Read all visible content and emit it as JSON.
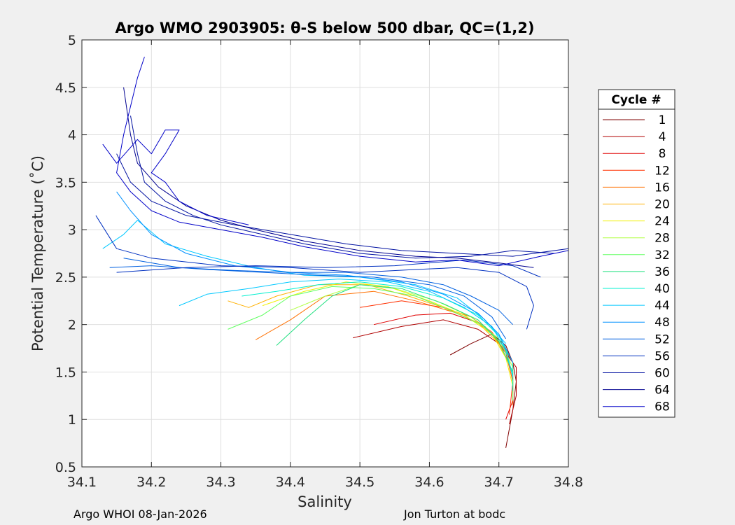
{
  "chart_data": {
    "type": "line",
    "title": "Argo WMO 2903905: θ-S below 500 dbar,  QC=(1,2)",
    "xlabel": "Salinity",
    "ylabel": "Potential Temperature (˚C)",
    "xlim": [
      34.1,
      34.8
    ],
    "ylim": [
      0.5,
      5
    ],
    "xticks": [
      "34.1",
      "34.2",
      "34.3",
      "34.4",
      "34.5",
      "34.6",
      "34.7",
      "34.8"
    ],
    "yticks": [
      "0.5",
      "1",
      "1.5",
      "2",
      "2.5",
      "3",
      "3.5",
      "4",
      "4.5",
      "5"
    ],
    "grid": true,
    "legend": {
      "title": "Cycle #",
      "placement": "outside-right",
      "entries": [
        {
          "label": "1",
          "color": "#7f0000"
        },
        {
          "label": "4",
          "color": "#b00000"
        },
        {
          "label": "8",
          "color": "#e00000"
        },
        {
          "label": "12",
          "color": "#ff3000"
        },
        {
          "label": "16",
          "color": "#ff7000"
        },
        {
          "label": "20",
          "color": "#ffb000"
        },
        {
          "label": "24",
          "color": "#f0f000"
        },
        {
          "label": "28",
          "color": "#b0ff40"
        },
        {
          "label": "32",
          "color": "#60ff60"
        },
        {
          "label": "36",
          "color": "#20e080"
        },
        {
          "label": "40",
          "color": "#00f0d0"
        },
        {
          "label": "44",
          "color": "#00c8ff"
        },
        {
          "label": "48",
          "color": "#0090ff"
        },
        {
          "label": "52",
          "color": "#0060e0"
        },
        {
          "label": "56",
          "color": "#0030c0"
        },
        {
          "label": "60",
          "color": "#0010a0"
        },
        {
          "label": "64",
          "color": "#00008f"
        },
        {
          "label": "68",
          "color": "#0000c8"
        }
      ]
    },
    "series": [
      {
        "color": "#7f0000",
        "points": [
          [
            34.63,
            1.68
          ],
          [
            34.66,
            1.8
          ],
          [
            34.69,
            1.9
          ],
          [
            34.71,
            1.78
          ],
          [
            34.72,
            1.6
          ],
          [
            34.725,
            1.4
          ],
          [
            34.72,
            1.1
          ],
          [
            34.71,
            0.7
          ]
        ]
      },
      {
        "color": "#b00000",
        "points": [
          [
            34.49,
            1.86
          ],
          [
            34.56,
            1.98
          ],
          [
            34.62,
            2.05
          ],
          [
            34.67,
            1.95
          ],
          [
            34.7,
            1.8
          ],
          [
            34.725,
            1.55
          ],
          [
            34.725,
            1.25
          ],
          [
            34.715,
            0.95
          ]
        ]
      },
      {
        "color": "#e00000",
        "points": [
          [
            34.52,
            2.0
          ],
          [
            34.58,
            2.1
          ],
          [
            34.63,
            2.12
          ],
          [
            34.67,
            2.02
          ],
          [
            34.7,
            1.85
          ],
          [
            34.72,
            1.6
          ],
          [
            34.72,
            1.2
          ],
          [
            34.71,
            1.0
          ]
        ]
      },
      {
        "color": "#ff3000",
        "points": [
          [
            34.5,
            2.18
          ],
          [
            34.56,
            2.25
          ],
          [
            34.62,
            2.18
          ],
          [
            34.66,
            2.08
          ],
          [
            34.69,
            1.92
          ],
          [
            34.71,
            1.7
          ],
          [
            34.72,
            1.4
          ],
          [
            34.715,
            1.05
          ]
        ]
      },
      {
        "color": "#ff7000",
        "points": [
          [
            34.35,
            1.84
          ],
          [
            34.4,
            2.05
          ],
          [
            34.45,
            2.3
          ],
          [
            34.52,
            2.35
          ],
          [
            34.58,
            2.25
          ],
          [
            34.64,
            2.12
          ],
          [
            34.68,
            1.98
          ],
          [
            34.71,
            1.72
          ],
          [
            34.72,
            1.4
          ],
          [
            34.72,
            1.15
          ]
        ]
      },
      {
        "color": "#ffb000",
        "points": [
          [
            34.31,
            2.25
          ],
          [
            34.34,
            2.18
          ],
          [
            34.38,
            2.3
          ],
          [
            34.44,
            2.42
          ],
          [
            34.51,
            2.42
          ],
          [
            34.57,
            2.3
          ],
          [
            34.62,
            2.18
          ],
          [
            34.67,
            2.02
          ],
          [
            34.7,
            1.8
          ],
          [
            34.72,
            1.5
          ],
          [
            34.72,
            1.25
          ]
        ]
      },
      {
        "color": "#f0f000",
        "points": [
          [
            34.36,
            2.2
          ],
          [
            34.42,
            2.35
          ],
          [
            34.48,
            2.45
          ],
          [
            34.54,
            2.4
          ],
          [
            34.6,
            2.25
          ],
          [
            34.65,
            2.1
          ],
          [
            34.69,
            1.9
          ],
          [
            34.71,
            1.65
          ],
          [
            34.72,
            1.35
          ]
        ]
      },
      {
        "color": "#b0ff40",
        "points": [
          [
            34.4,
            2.15
          ],
          [
            34.45,
            2.3
          ],
          [
            34.5,
            2.42
          ],
          [
            34.55,
            2.38
          ],
          [
            34.61,
            2.25
          ],
          [
            34.66,
            2.08
          ],
          [
            34.7,
            1.85
          ],
          [
            34.72,
            1.55
          ],
          [
            34.72,
            1.3
          ]
        ]
      },
      {
        "color": "#60ff60",
        "points": [
          [
            34.31,
            1.95
          ],
          [
            34.36,
            2.1
          ],
          [
            34.4,
            2.3
          ],
          [
            34.46,
            2.4
          ],
          [
            34.52,
            2.38
          ],
          [
            34.58,
            2.3
          ],
          [
            34.63,
            2.15
          ],
          [
            34.68,
            1.98
          ],
          [
            34.71,
            1.75
          ],
          [
            34.72,
            1.45
          ],
          [
            34.72,
            1.2
          ]
        ]
      },
      {
        "color": "#20e080",
        "points": [
          [
            34.38,
            1.78
          ],
          [
            34.42,
            2.05
          ],
          [
            34.46,
            2.3
          ],
          [
            34.5,
            2.42
          ],
          [
            34.56,
            2.38
          ],
          [
            34.62,
            2.22
          ],
          [
            34.67,
            2.05
          ],
          [
            34.7,
            1.82
          ],
          [
            34.72,
            1.5
          ]
        ]
      },
      {
        "color": "#00f0d0",
        "points": [
          [
            34.33,
            2.3
          ],
          [
            34.38,
            2.35
          ],
          [
            34.44,
            2.42
          ],
          [
            34.5,
            2.45
          ],
          [
            34.56,
            2.4
          ],
          [
            34.62,
            2.28
          ],
          [
            34.67,
            2.1
          ],
          [
            34.7,
            1.88
          ],
          [
            34.72,
            1.6
          ],
          [
            34.72,
            1.3
          ]
        ]
      },
      {
        "color": "#00c8ff",
        "points": [
          [
            34.24,
            2.2
          ],
          [
            34.28,
            2.32
          ],
          [
            34.34,
            2.38
          ],
          [
            34.4,
            2.45
          ],
          [
            34.47,
            2.48
          ],
          [
            34.54,
            2.45
          ],
          [
            34.6,
            2.35
          ],
          [
            34.65,
            2.18
          ],
          [
            34.69,
            1.98
          ],
          [
            34.71,
            1.72
          ],
          [
            34.72,
            1.45
          ]
        ]
      },
      {
        "color": "#00c8ff",
        "points": [
          [
            34.13,
            2.8
          ],
          [
            34.16,
            2.95
          ],
          [
            34.18,
            3.1
          ],
          [
            34.22,
            2.85
          ],
          [
            34.28,
            2.72
          ],
          [
            34.35,
            2.6
          ],
          [
            34.42,
            2.52
          ],
          [
            34.5,
            2.5
          ],
          [
            34.58,
            2.42
          ],
          [
            34.64,
            2.28
          ],
          [
            34.68,
            2.05
          ],
          [
            34.71,
            1.8
          ]
        ]
      },
      {
        "color": "#0090ff",
        "points": [
          [
            34.15,
            3.4
          ],
          [
            34.17,
            3.2
          ],
          [
            34.2,
            2.95
          ],
          [
            34.25,
            2.75
          ],
          [
            34.32,
            2.62
          ],
          [
            34.4,
            2.55
          ],
          [
            34.48,
            2.52
          ],
          [
            34.56,
            2.45
          ],
          [
            34.62,
            2.32
          ],
          [
            34.67,
            2.12
          ],
          [
            34.7,
            1.9
          ],
          [
            34.72,
            1.6
          ]
        ]
      },
      {
        "color": "#0060e0",
        "points": [
          [
            34.14,
            2.6
          ],
          [
            34.2,
            2.62
          ],
          [
            34.28,
            2.58
          ],
          [
            34.36,
            2.55
          ],
          [
            34.44,
            2.52
          ],
          [
            34.52,
            2.5
          ],
          [
            34.6,
            2.42
          ],
          [
            34.65,
            2.3
          ],
          [
            34.69,
            2.08
          ],
          [
            34.71,
            1.85
          ]
        ]
      },
      {
        "color": "#0060e0",
        "points": [
          [
            34.16,
            2.7
          ],
          [
            34.24,
            2.6
          ],
          [
            34.32,
            2.57
          ],
          [
            34.4,
            2.55
          ],
          [
            34.48,
            2.55
          ],
          [
            34.56,
            2.5
          ],
          [
            34.62,
            2.42
          ],
          [
            34.66,
            2.3
          ],
          [
            34.7,
            2.15
          ],
          [
            34.72,
            2.0
          ]
        ]
      },
      {
        "color": "#0030c0",
        "points": [
          [
            34.12,
            3.15
          ],
          [
            34.15,
            2.8
          ],
          [
            34.2,
            2.7
          ],
          [
            34.3,
            2.62
          ],
          [
            34.4,
            2.6
          ],
          [
            34.5,
            2.55
          ],
          [
            34.58,
            2.58
          ],
          [
            34.64,
            2.6
          ],
          [
            34.7,
            2.55
          ],
          [
            34.74,
            2.4
          ],
          [
            34.75,
            2.2
          ],
          [
            34.74,
            1.95
          ]
        ]
      },
      {
        "color": "#0030c0",
        "points": [
          [
            34.15,
            2.55
          ],
          [
            34.25,
            2.6
          ],
          [
            34.35,
            2.62
          ],
          [
            34.45,
            2.6
          ],
          [
            34.55,
            2.62
          ],
          [
            34.65,
            2.68
          ],
          [
            34.72,
            2.62
          ],
          [
            34.76,
            2.5
          ]
        ]
      },
      {
        "color": "#0010a0",
        "points": [
          [
            34.15,
            3.8
          ],
          [
            34.17,
            3.5
          ],
          [
            34.2,
            3.3
          ],
          [
            34.25,
            3.15
          ],
          [
            34.32,
            3.05
          ],
          [
            34.4,
            2.95
          ],
          [
            34.48,
            2.85
          ],
          [
            34.56,
            2.78
          ],
          [
            34.64,
            2.75
          ],
          [
            34.72,
            2.72
          ],
          [
            34.8,
            2.8
          ]
        ]
      },
      {
        "color": "#0010a0",
        "points": [
          [
            34.17,
            4.2
          ],
          [
            34.18,
            3.8
          ],
          [
            34.19,
            3.5
          ],
          [
            34.22,
            3.3
          ],
          [
            34.26,
            3.15
          ],
          [
            34.3,
            3.05
          ],
          [
            34.36,
            2.95
          ],
          [
            34.42,
            2.85
          ],
          [
            34.5,
            2.75
          ],
          [
            34.58,
            2.7
          ],
          [
            34.66,
            2.72
          ],
          [
            34.72,
            2.78
          ],
          [
            34.78,
            2.75
          ]
        ]
      },
      {
        "color": "#00008f",
        "points": [
          [
            34.16,
            4.5
          ],
          [
            34.17,
            4.0
          ],
          [
            34.18,
            3.7
          ],
          [
            34.21,
            3.45
          ],
          [
            34.25,
            3.25
          ],
          [
            34.3,
            3.1
          ],
          [
            34.35,
            3.0
          ],
          [
            34.42,
            2.88
          ],
          [
            34.5,
            2.78
          ],
          [
            34.58,
            2.72
          ],
          [
            34.64,
            2.7
          ],
          [
            34.7,
            2.65
          ],
          [
            34.75,
            2.6
          ]
        ]
      },
      {
        "color": "#0000c8",
        "points": [
          [
            34.19,
            4.82
          ],
          [
            34.18,
            4.6
          ],
          [
            34.17,
            4.3
          ],
          [
            34.16,
            4.0
          ],
          [
            34.15,
            3.6
          ],
          [
            34.17,
            3.4
          ],
          [
            34.2,
            3.2
          ],
          [
            34.24,
            3.08
          ],
          [
            34.3,
            3.0
          ],
          [
            34.36,
            2.92
          ],
          [
            34.42,
            2.82
          ],
          [
            34.5,
            2.72
          ],
          [
            34.58,
            2.66
          ],
          [
            34.64,
            2.68
          ],
          [
            34.7,
            2.62
          ],
          [
            34.76,
            2.72
          ],
          [
            34.8,
            2.78
          ]
        ]
      },
      {
        "color": "#0000c8",
        "points": [
          [
            34.13,
            3.9
          ],
          [
            34.15,
            3.7
          ],
          [
            34.18,
            3.95
          ],
          [
            34.2,
            3.8
          ],
          [
            34.22,
            4.05
          ],
          [
            34.24,
            4.05
          ],
          [
            34.22,
            3.8
          ],
          [
            34.2,
            3.6
          ],
          [
            34.22,
            3.5
          ],
          [
            34.24,
            3.3
          ],
          [
            34.28,
            3.15
          ],
          [
            34.34,
            3.05
          ]
        ]
      }
    ]
  },
  "footer": {
    "left": "Argo WHOI 08-Jan-2026",
    "right": "Jon Turton at bodc"
  }
}
